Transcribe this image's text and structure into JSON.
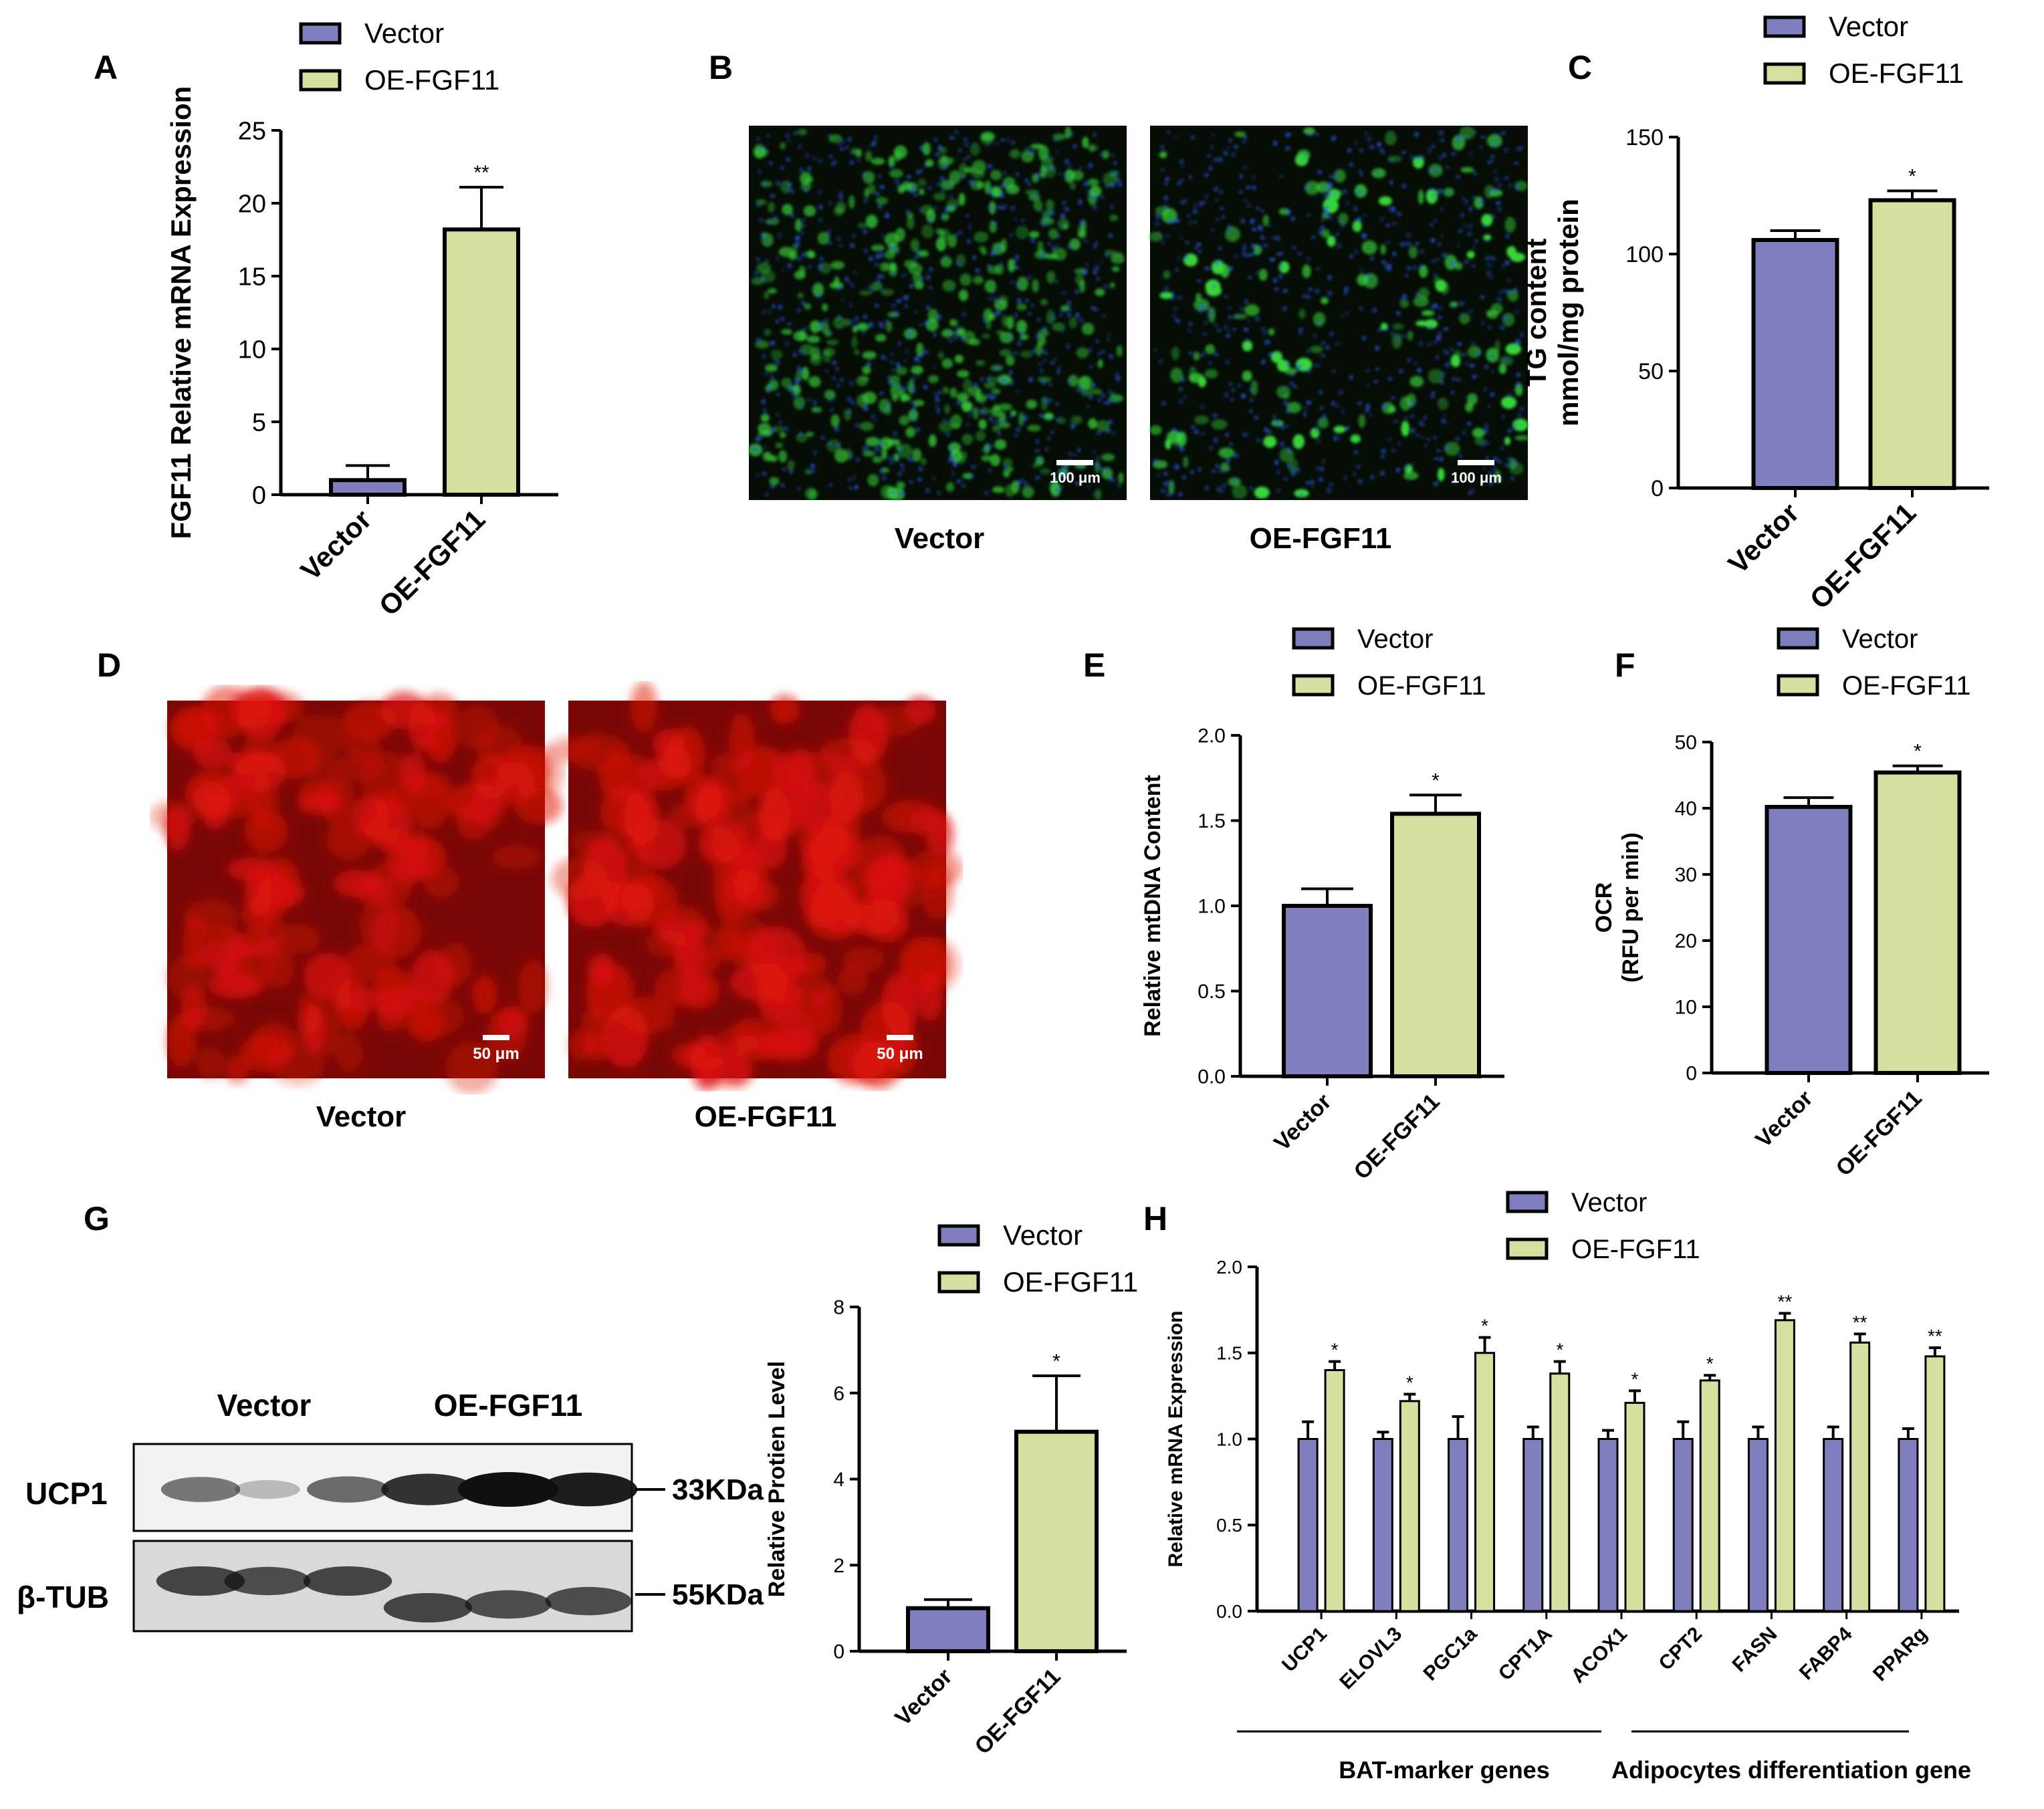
{
  "colors": {
    "vector": "#7f7fc0",
    "oe": "#d6dea0",
    "axis": "#000000",
    "green_stain": "#39d43c",
    "blue_stain": "#2a4fd6",
    "red_stain": "#e0140a"
  },
  "panels": {
    "A": "A",
    "B": "B",
    "C": "C",
    "D": "D",
    "E": "E",
    "F": "F",
    "G": "G",
    "H": "H"
  },
  "panel_b": {
    "scale_bar": "100 μm",
    "captions": [
      "Vector",
      "OE-FGF11"
    ]
  },
  "panel_d": {
    "scale_bar": "50 μm",
    "captions": [
      "Vector",
      "OE-FGF11"
    ]
  },
  "panel_g_blot": {
    "group_labels": [
      "Vector",
      "OE-FGF11"
    ],
    "rows": [
      {
        "name": "UCP1",
        "size": "33KDa",
        "intensity": [
          0.55,
          0.25,
          0.6,
          0.85,
          1.0,
          0.95
        ]
      },
      {
        "name": "β-TUB",
        "size": "55KDa",
        "intensity": [
          0.75,
          0.7,
          0.75,
          0.75,
          0.7,
          0.7
        ]
      }
    ]
  },
  "chart_data": [
    {
      "id": "A",
      "type": "bar",
      "categories": [
        "Vector",
        "OE-FGF11"
      ],
      "values": [
        1.0,
        18.2
      ],
      "errors": [
        1.0,
        2.9
      ],
      "significance": [
        "",
        "**"
      ],
      "ylabel": "FGF11 Relative mRNA Expression",
      "ylim": [
        0,
        25
      ],
      "yticks": [
        "0",
        "5",
        "10",
        "15",
        "20",
        "25"
      ],
      "legend": [
        "Vector",
        "OE-FGF11"
      ]
    },
    {
      "id": "C",
      "type": "bar",
      "categories": [
        "Vector",
        "OE-FGF11"
      ],
      "values": [
        106,
        123
      ],
      "errors": [
        4,
        4
      ],
      "significance": [
        "",
        "*"
      ],
      "ylabel": [
        "TG content",
        "mmol/mg protein"
      ],
      "ylim": [
        0,
        150
      ],
      "yticks": [
        "0",
        "50",
        "100",
        "150"
      ],
      "legend": [
        "Vector",
        "OE-FGF11"
      ]
    },
    {
      "id": "E",
      "type": "bar",
      "categories": [
        "Vector",
        "OE-FGF11"
      ],
      "values": [
        1.0,
        1.54
      ],
      "errors": [
        0.1,
        0.11
      ],
      "significance": [
        "",
        "*"
      ],
      "ylabel": "Relative mtDNA Content",
      "ylim": [
        0,
        2.0
      ],
      "yticks": [
        "0.0",
        "0.5",
        "1.0",
        "1.5",
        "2.0"
      ],
      "legend": [
        "Vector",
        "OE-FGF11"
      ]
    },
    {
      "id": "F",
      "type": "bar",
      "categories": [
        "Vector",
        "OE-FGF11"
      ],
      "values": [
        40.2,
        45.4
      ],
      "errors": [
        1.4,
        1.0
      ],
      "significance": [
        "",
        "*"
      ],
      "ylabel": [
        "OCR",
        "(RFU per min)"
      ],
      "ylim": [
        0,
        50
      ],
      "yticks": [
        "0",
        "10",
        "20",
        "30",
        "40",
        "50"
      ],
      "legend": [
        "Vector",
        "OE-FGF11"
      ]
    },
    {
      "id": "G",
      "type": "bar",
      "categories": [
        "Vector",
        "OE-FGF11"
      ],
      "values": [
        1.0,
        5.1
      ],
      "errors": [
        0.2,
        1.3
      ],
      "significance": [
        "",
        "*"
      ],
      "ylabel": "Relative Protien Level",
      "ylim": [
        0,
        8
      ],
      "yticks": [
        "0",
        "2",
        "4",
        "6",
        "8"
      ],
      "legend": [
        "Vector",
        "OE-FGF11"
      ]
    },
    {
      "id": "H",
      "type": "bar",
      "categories": [
        "UCP1",
        "ELOVL3",
        "PGC1a",
        "CPT1A",
        "ACOX1",
        "CPT2",
        "FASN",
        "FABP4",
        "PPARg"
      ],
      "series": [
        {
          "name": "Vector",
          "values": [
            1.0,
            1.0,
            1.0,
            1.0,
            1.0,
            1.0,
            1.0,
            1.0,
            1.0
          ],
          "errors": [
            0.1,
            0.04,
            0.13,
            0.07,
            0.05,
            0.1,
            0.07,
            0.07,
            0.06
          ]
        },
        {
          "name": "OE-FGF11",
          "values": [
            1.4,
            1.22,
            1.5,
            1.38,
            1.21,
            1.34,
            1.69,
            1.56,
            1.48
          ],
          "errors": [
            0.05,
            0.04,
            0.09,
            0.07,
            0.07,
            0.03,
            0.04,
            0.05,
            0.05
          ]
        }
      ],
      "significance": [
        "*",
        "*",
        "*",
        "*",
        "*",
        "*",
        "**",
        "**",
        "**"
      ],
      "ylabel": "Relative mRNA Expression",
      "ylim": [
        0,
        2.0
      ],
      "yticks": [
        "0.0",
        "0.5",
        "1.0",
        "1.5",
        "2.0"
      ],
      "groups": [
        "BAT-marker genes",
        "Adipocytes differentiation gene"
      ]
    }
  ]
}
